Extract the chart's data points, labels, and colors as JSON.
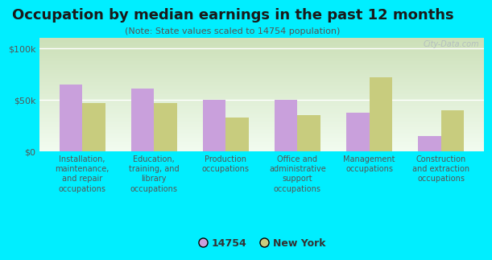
{
  "title": "Occupation by median earnings in the past 12 months",
  "subtitle": "(Note: State values scaled to 14754 population)",
  "categories": [
    "Installation,\nmaintenance,\nand repair\noccupations",
    "Education,\ntraining, and\nlibrary\noccupations",
    "Production\noccupations",
    "Office and\nadministrative\nsupport\noccupations",
    "Management\noccupations",
    "Construction\nand extraction\noccupations"
  ],
  "values_14754": [
    65000,
    61000,
    50000,
    50000,
    37000,
    15000
  ],
  "values_ny": [
    47000,
    47000,
    33000,
    35000,
    72000,
    40000
  ],
  "color_14754": "#c9a0dc",
  "color_ny": "#c8cc7e",
  "bg_outer": "#00eeff",
  "ylim": [
    0,
    110000
  ],
  "yticks": [
    0,
    50000,
    100000
  ],
  "ytick_labels": [
    "$0",
    "$50k",
    "$100k"
  ],
  "watermark": "City-Data.com",
  "legend_labels": [
    "14754",
    "New York"
  ],
  "title_fontsize": 13,
  "subtitle_fontsize": 8,
  "tick_fontsize": 7,
  "ytick_fontsize": 8
}
